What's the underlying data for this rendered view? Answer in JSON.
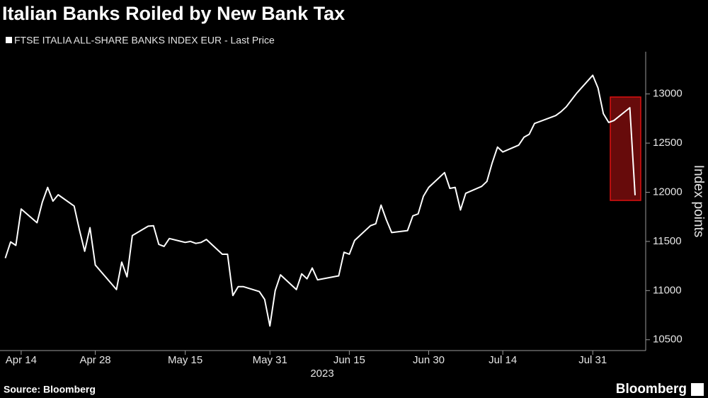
{
  "chart_data": {
    "type": "line",
    "title": "Italian Banks Roiled by New Bank Tax",
    "source": "Source: Bloomberg",
    "brand": "Bloomberg",
    "x_label": "2023",
    "y_label": "Index points",
    "x": [
      "2023-04-11",
      "2023-04-12",
      "2023-04-13",
      "2023-04-14",
      "2023-04-17",
      "2023-04-18",
      "2023-04-19",
      "2023-04-20",
      "2023-04-21",
      "2023-04-24",
      "2023-04-25",
      "2023-04-26",
      "2023-04-27",
      "2023-04-28",
      "2023-05-02",
      "2023-05-03",
      "2023-05-04",
      "2023-05-05",
      "2023-05-08",
      "2023-05-09",
      "2023-05-10",
      "2023-05-11",
      "2023-05-12",
      "2023-05-15",
      "2023-05-16",
      "2023-05-17",
      "2023-05-18",
      "2023-05-19",
      "2023-05-22",
      "2023-05-23",
      "2023-05-24",
      "2023-05-25",
      "2023-05-26",
      "2023-05-29",
      "2023-05-30",
      "2023-05-31",
      "2023-06-01",
      "2023-06-02",
      "2023-06-05",
      "2023-06-06",
      "2023-06-07",
      "2023-06-08",
      "2023-06-09",
      "2023-06-12",
      "2023-06-13",
      "2023-06-14",
      "2023-06-15",
      "2023-06-16",
      "2023-06-19",
      "2023-06-20",
      "2023-06-21",
      "2023-06-22",
      "2023-06-23",
      "2023-06-26",
      "2023-06-27",
      "2023-06-28",
      "2023-06-29",
      "2023-06-30",
      "2023-07-03",
      "2023-07-04",
      "2023-07-05",
      "2023-07-06",
      "2023-07-07",
      "2023-07-10",
      "2023-07-11",
      "2023-07-12",
      "2023-07-13",
      "2023-07-14",
      "2023-07-17",
      "2023-07-18",
      "2023-07-19",
      "2023-07-20",
      "2023-07-21",
      "2023-07-24",
      "2023-07-25",
      "2023-07-26",
      "2023-07-27",
      "2023-07-28",
      "2023-07-31",
      "2023-08-01",
      "2023-08-02",
      "2023-08-03",
      "2023-08-04",
      "2023-08-07",
      "2023-08-08"
    ],
    "series": [
      {
        "name": "FTSE ITALIA ALL-SHARE BANKS INDEX EUR - Last Price",
        "color": "#ffffff",
        "values": [
          11330,
          11495,
          11460,
          11830,
          11690,
          11900,
          12050,
          11910,
          11975,
          11860,
          11620,
          11400,
          11640,
          11260,
          11010,
          11290,
          11140,
          11560,
          11655,
          11660,
          11470,
          11450,
          11530,
          11490,
          11500,
          11480,
          11490,
          11520,
          11370,
          11370,
          10950,
          11040,
          11040,
          10990,
          10910,
          10640,
          11000,
          11160,
          11010,
          11170,
          11120,
          11230,
          11110,
          11140,
          11150,
          11390,
          11370,
          11510,
          11660,
          11680,
          11870,
          11720,
          11590,
          11610,
          11760,
          11780,
          11960,
          12050,
          12200,
          12040,
          12050,
          11820,
          11990,
          12060,
          12110,
          12300,
          12460,
          12410,
          12480,
          12560,
          12590,
          12700,
          12720,
          12780,
          12820,
          12870,
          12940,
          13010,
          13190,
          13060,
          12800,
          12710,
          12730,
          12860,
          11970
        ]
      }
    ],
    "xlim": [
      "2023-04-10",
      "2023-08-10"
    ],
    "xticks": [
      {
        "value": "2023-04-14",
        "label": "Apr 14"
      },
      {
        "value": "2023-04-28",
        "label": "Apr 28"
      },
      {
        "value": "2023-05-15",
        "label": "May 15"
      },
      {
        "value": "2023-05-31",
        "label": "May 31"
      },
      {
        "value": "2023-06-15",
        "label": "Jun 15"
      },
      {
        "value": "2023-06-30",
        "label": "Jun 30"
      },
      {
        "value": "2023-07-14",
        "label": "Jul 14"
      },
      {
        "value": "2023-07-31",
        "label": "Jul 31"
      }
    ],
    "ylim": [
      10390,
      13430
    ],
    "yticks": [
      10500,
      11000,
      11500,
      12000,
      12500,
      13000
    ]
  }
}
